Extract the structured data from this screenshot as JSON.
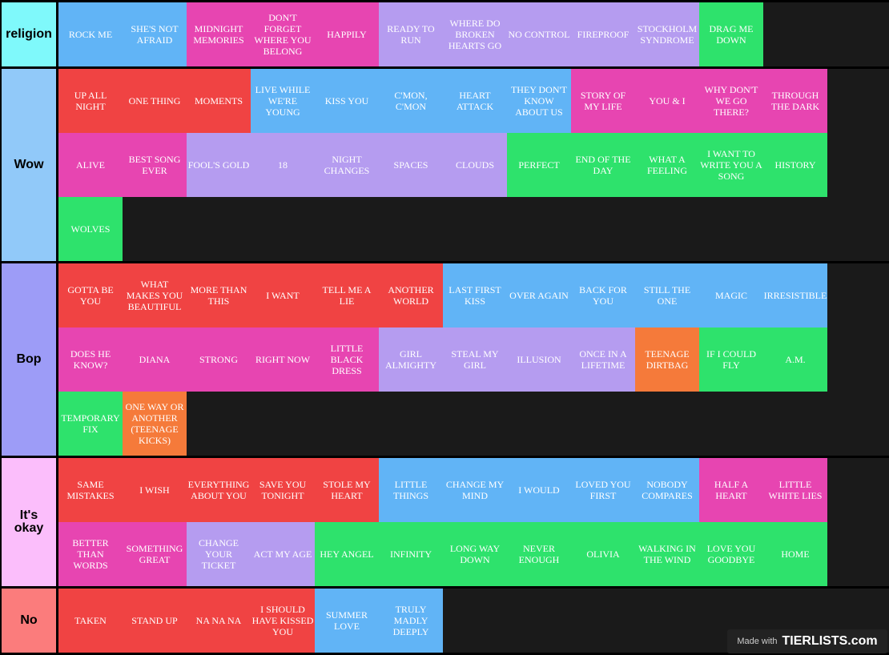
{
  "colors": {
    "blue": "#61b4f6",
    "pink": "#e745b1",
    "lavender": "#b59cf0",
    "green": "#2ee26c",
    "red": "#f04343",
    "orange": "#f57a3a"
  },
  "tiers": [
    {
      "label": "religion",
      "color": "#7ff9fb",
      "items": [
        {
          "text": "ROCK ME",
          "color": "blue"
        },
        {
          "text": "SHE'S NOT AFRAID",
          "color": "blue"
        },
        {
          "text": "MIDNIGHT MEMORIES",
          "color": "pink"
        },
        {
          "text": "DON'T FORGET WHERE YOU BELONG",
          "color": "pink"
        },
        {
          "text": "HAPPILY",
          "color": "pink"
        },
        {
          "text": "READY TO RUN",
          "color": "lavender"
        },
        {
          "text": "WHERE DO BROKEN HEARTS GO",
          "color": "lavender"
        },
        {
          "text": "NO CONTROL",
          "color": "lavender"
        },
        {
          "text": "FIREPROOF",
          "color": "lavender"
        },
        {
          "text": "STOCKHOLM SYNDROME",
          "color": "lavender"
        },
        {
          "text": "DRAG ME DOWN",
          "color": "green"
        }
      ]
    },
    {
      "label": "Wow",
      "color": "#91c9f9",
      "items": [
        {
          "text": "UP ALL NIGHT",
          "color": "red"
        },
        {
          "text": "ONE THING",
          "color": "red"
        },
        {
          "text": "MOMENTS",
          "color": "red"
        },
        {
          "text": "LIVE WHILE WE'RE YOUNG",
          "color": "blue"
        },
        {
          "text": "KISS YOU",
          "color": "blue"
        },
        {
          "text": "C'MON, C'MON",
          "color": "blue"
        },
        {
          "text": "HEART ATTACK",
          "color": "blue"
        },
        {
          "text": "THEY DON'T KNOW ABOUT US",
          "color": "blue"
        },
        {
          "text": "STORY OF MY LIFE",
          "color": "pink"
        },
        {
          "text": "YOU & I",
          "color": "pink"
        },
        {
          "text": "WHY DON'T WE GO THERE?",
          "color": "pink"
        },
        {
          "text": "THROUGH THE DARK",
          "color": "pink"
        },
        {
          "text": "ALIVE",
          "color": "pink"
        },
        {
          "text": "BEST SONG EVER",
          "color": "pink"
        },
        {
          "text": "FOOL'S GOLD",
          "color": "lavender"
        },
        {
          "text": "18",
          "color": "lavender"
        },
        {
          "text": "NIGHT CHANGES",
          "color": "lavender"
        },
        {
          "text": "SPACES",
          "color": "lavender"
        },
        {
          "text": "CLOUDS",
          "color": "lavender"
        },
        {
          "text": "PERFECT",
          "color": "green"
        },
        {
          "text": "END OF THE DAY",
          "color": "green"
        },
        {
          "text": "WHAT A FEELING",
          "color": "green"
        },
        {
          "text": "I WANT TO WRITE YOU A SONG",
          "color": "green"
        },
        {
          "text": "HISTORY",
          "color": "green"
        },
        {
          "text": "WOLVES",
          "color": "green"
        }
      ]
    },
    {
      "label": "Bop",
      "color": "#9d9cf7",
      "items": [
        {
          "text": "GOTTA BE YOU",
          "color": "red"
        },
        {
          "text": "WHAT MAKES YOU BEAUTIFUL",
          "color": "red"
        },
        {
          "text": "MORE THAN THIS",
          "color": "red"
        },
        {
          "text": "I WANT",
          "color": "red"
        },
        {
          "text": "TELL ME A LIE",
          "color": "red"
        },
        {
          "text": "ANOTHER WORLD",
          "color": "red"
        },
        {
          "text": "LAST FIRST KISS",
          "color": "blue"
        },
        {
          "text": "OVER AGAIN",
          "color": "blue"
        },
        {
          "text": "BACK FOR YOU",
          "color": "blue"
        },
        {
          "text": "STILL THE ONE",
          "color": "blue"
        },
        {
          "text": "MAGIC",
          "color": "blue"
        },
        {
          "text": "IRRESISTIBLE",
          "color": "blue"
        },
        {
          "text": "DOES HE KNOW?",
          "color": "pink"
        },
        {
          "text": "DIANA",
          "color": "pink"
        },
        {
          "text": "STRONG",
          "color": "pink"
        },
        {
          "text": "RIGHT NOW",
          "color": "pink"
        },
        {
          "text": "LITTLE BLACK DRESS",
          "color": "pink"
        },
        {
          "text": "GIRL ALMIGHTY",
          "color": "lavender"
        },
        {
          "text": "STEAL MY GIRL",
          "color": "lavender"
        },
        {
          "text": "ILLUSION",
          "color": "lavender"
        },
        {
          "text": "ONCE IN A LIFETIME",
          "color": "lavender"
        },
        {
          "text": "TEENAGE DIRTBAG",
          "color": "orange"
        },
        {
          "text": "IF I COULD FLY",
          "color": "green"
        },
        {
          "text": "A.M.",
          "color": "green"
        },
        {
          "text": "TEMPORARY FIX",
          "color": "green"
        },
        {
          "text": "ONE WAY OR ANOTHER (TEENAGE KICKS)",
          "color": "orange"
        }
      ]
    },
    {
      "label": "It's okay",
      "color": "#fbbefb",
      "items": [
        {
          "text": "SAME MISTAKES",
          "color": "red"
        },
        {
          "text": "I WISH",
          "color": "red"
        },
        {
          "text": "EVERYTHING ABOUT YOU",
          "color": "red"
        },
        {
          "text": "SAVE YOU TONIGHT",
          "color": "red"
        },
        {
          "text": "STOLE MY HEART",
          "color": "red"
        },
        {
          "text": "LITTLE THINGS",
          "color": "blue"
        },
        {
          "text": "CHANGE MY MIND",
          "color": "blue"
        },
        {
          "text": "I WOULD",
          "color": "blue"
        },
        {
          "text": "LOVED YOU FIRST",
          "color": "blue"
        },
        {
          "text": "NOBODY COMPARES",
          "color": "blue"
        },
        {
          "text": "HALF A HEART",
          "color": "pink"
        },
        {
          "text": "LITTLE WHITE LIES",
          "color": "pink"
        },
        {
          "text": "BETTER THAN WORDS",
          "color": "pink"
        },
        {
          "text": "SOMETHING GREAT",
          "color": "pink"
        },
        {
          "text": "CHANGE YOUR TICKET",
          "color": "lavender"
        },
        {
          "text": "ACT MY AGE",
          "color": "lavender"
        },
        {
          "text": "HEY ANGEL",
          "color": "green"
        },
        {
          "text": "INFINITY",
          "color": "green"
        },
        {
          "text": "LONG WAY DOWN",
          "color": "green"
        },
        {
          "text": "NEVER ENOUGH",
          "color": "green"
        },
        {
          "text": "OLIVIA",
          "color": "green"
        },
        {
          "text": "WALKING IN THE WIND",
          "color": "green"
        },
        {
          "text": "LOVE YOU GOODBYE",
          "color": "green"
        },
        {
          "text": "HOME",
          "color": "green"
        }
      ]
    },
    {
      "label": "No",
      "color": "#fb7c7c",
      "items": [
        {
          "text": "TAKEN",
          "color": "red"
        },
        {
          "text": "STAND UP",
          "color": "red"
        },
        {
          "text": "NA NA NA",
          "color": "red"
        },
        {
          "text": "I SHOULD HAVE KISSED YOU",
          "color": "red"
        },
        {
          "text": "SUMMER LOVE",
          "color": "blue"
        },
        {
          "text": "TRULY MADLY DEEPLY",
          "color": "blue"
        }
      ]
    }
  ],
  "watermark": {
    "made_with": "Made with",
    "brand": "TIERLISTS.com"
  }
}
